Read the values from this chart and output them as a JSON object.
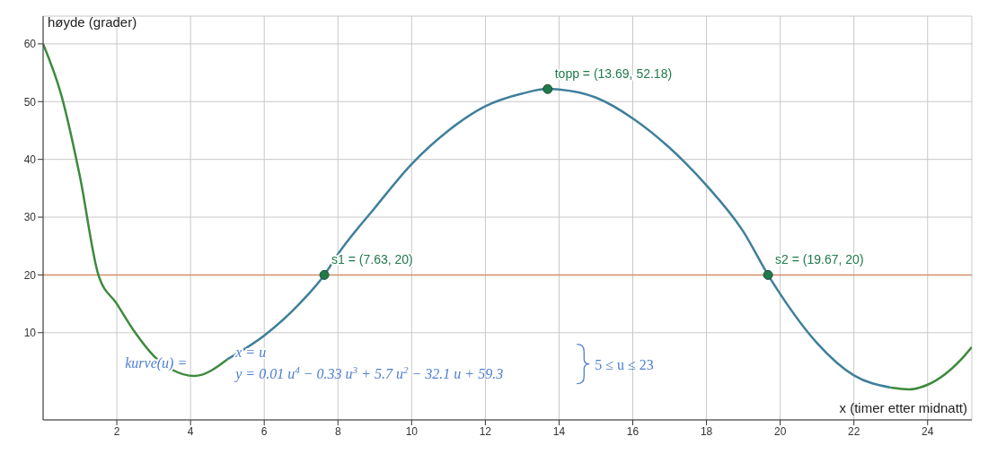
{
  "chart_data": {
    "type": "line",
    "xlabel": "x (timer etter midnatt)",
    "ylabel": "høyde (grader)",
    "xlim": [
      0,
      25.2
    ],
    "ylim": [
      -5.1,
      64.8
    ],
    "xticks": [
      2,
      4,
      6,
      8,
      10,
      12,
      14,
      16,
      18,
      20,
      22,
      24
    ],
    "yticks": [
      10,
      20,
      30,
      40,
      50,
      60
    ],
    "grid": true,
    "marker": "none",
    "line_style": "solid",
    "series": [
      {
        "color": "#3d8a3d",
        "x": [
          0,
          0.5,
          1,
          1.5,
          2,
          2.5,
          3,
          3.5,
          4.1,
          5
        ],
        "values": [
          60,
          51,
          37,
          20,
          15,
          10,
          6,
          3.6,
          2.5,
          5.4
        ]
      },
      {
        "color": "#3f7f9a",
        "x": [
          5,
          6,
          7,
          7.63,
          8,
          9,
          10,
          11,
          12,
          13,
          13.7,
          14,
          15,
          16,
          17,
          18,
          19,
          19.67,
          20,
          21,
          22,
          23
        ],
        "values": [
          5.4,
          9.5,
          15.3,
          20,
          23.6,
          31.6,
          39.2,
          45,
          49.2,
          51.4,
          52.2,
          52.1,
          50.7,
          47.1,
          42,
          35.5,
          27.5,
          20,
          16.7,
          8.2,
          2.6,
          0.5
        ]
      },
      {
        "color": "#3d8a3d",
        "x": [
          23,
          23.5,
          24,
          25,
          25.2
        ],
        "values": [
          0.5,
          0.2,
          1,
          6,
          7.5
        ]
      },
      {
        "type": "scatter",
        "marker": "circle",
        "color": "#1e7a4a",
        "x": [
          7.63,
          13.69,
          19.67
        ],
        "values": [
          20,
          52.18,
          20
        ],
        "value_labels": [
          "s1 = (7.63, 20)",
          "topp = (13.69, 52.18)",
          "s2 = (19.67, 20)"
        ]
      }
    ],
    "ref_lines": [
      {
        "axis": "y",
        "value": 20,
        "color": "#d4916e"
      }
    ],
    "annotations": [
      "kurve(u) =",
      "x = u",
      "y = 0.01 u$^{4}$ − 0.33 u$^{3}$ + 5.7 u$^{2}$ − 32.1 u + 59.3",
      "5 ≤ u ≤ 23"
    ]
  }
}
